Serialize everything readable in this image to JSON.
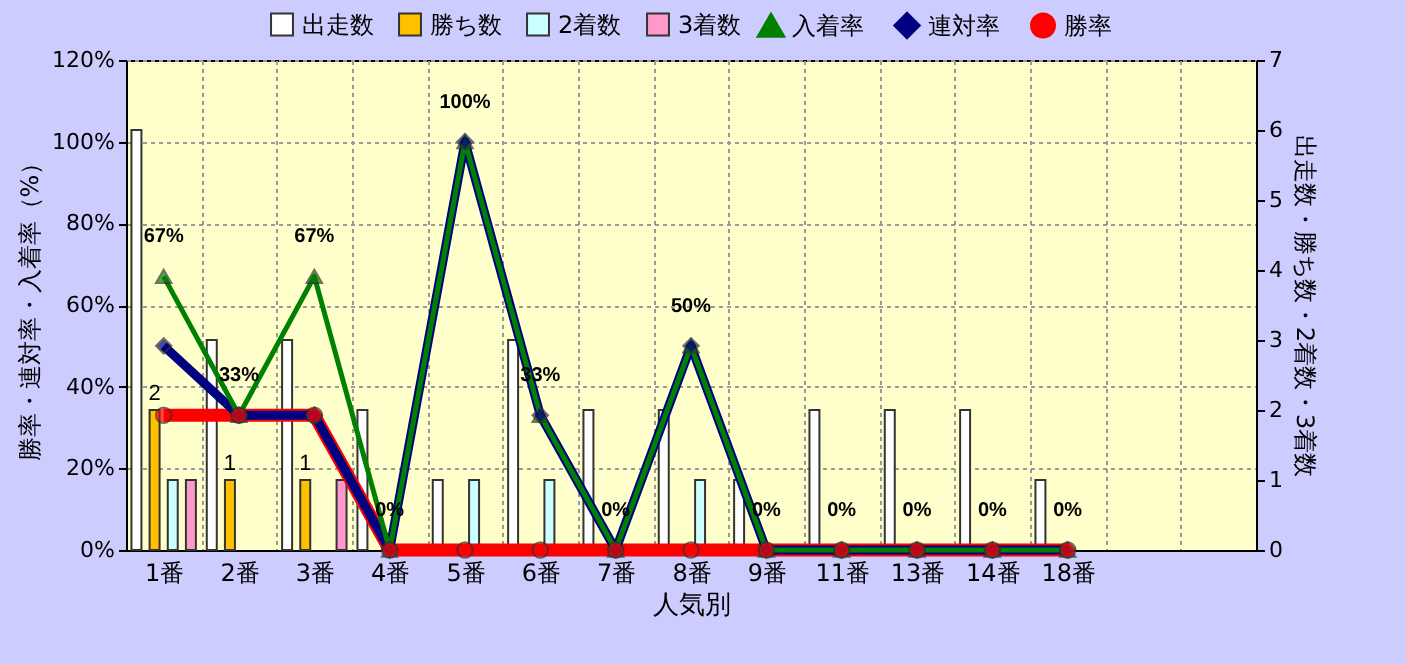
{
  "chart_data": {
    "type": "bar",
    "xlabel": "人気別",
    "ylabel": "勝率・連対率・入着率（%）",
    "y2label": "出走数・勝ち数・2着数・3着数",
    "categories": [
      "1番",
      "2番",
      "3番",
      "4番",
      "5番",
      "6番",
      "7番",
      "8番",
      "9番",
      "11番",
      "13番",
      "14番",
      "18番",
      null,
      null
    ],
    "series": [
      {
        "name": "出走数",
        "type": "bar",
        "axis": "y2",
        "color": "#ffffff",
        "values": [
          6,
          3,
          3,
          2,
          1,
          3,
          2,
          2,
          1,
          2,
          2,
          2,
          1,
          null,
          null
        ]
      },
      {
        "name": "勝ち数",
        "type": "bar",
        "axis": "y2",
        "color": "#ffc000",
        "values": [
          2,
          1,
          1,
          0,
          0,
          0,
          0,
          0,
          0,
          0,
          0,
          0,
          0,
          null,
          null
        ],
        "value_labels": [
          "2",
          "1",
          "1",
          null,
          null,
          null,
          null,
          null,
          null,
          null,
          null,
          null,
          null,
          null,
          null
        ]
      },
      {
        "name": "2着数",
        "type": "bar",
        "axis": "y2",
        "color": "#ccffff",
        "values": [
          1,
          0,
          0,
          0,
          1,
          1,
          0,
          1,
          0,
          0,
          0,
          0,
          0,
          null,
          null
        ]
      },
      {
        "name": "3着数",
        "type": "bar",
        "axis": "y2",
        "color": "#ff99cc",
        "values": [
          1,
          0,
          1,
          0,
          0,
          0,
          0,
          0,
          0,
          0,
          0,
          0,
          0,
          null,
          null
        ]
      },
      {
        "name": "入着率",
        "type": "line",
        "marker": "triangle",
        "color": "#008000",
        "values": [
          67,
          33,
          67,
          0,
          100,
          33,
          0,
          50,
          0,
          0,
          0,
          0,
          0,
          null,
          null
        ],
        "value_labels": [
          "67%",
          "33%",
          "67%",
          "0%",
          "100%",
          "33%",
          "0%",
          "50%",
          "0%",
          "0%",
          "0%",
          "0%",
          "0%",
          null,
          null
        ]
      },
      {
        "name": "連対率",
        "type": "line",
        "marker": "diamond",
        "color": "#000080",
        "values": [
          50,
          33,
          33,
          0,
          100,
          33,
          0,
          50,
          0,
          0,
          0,
          0,
          0,
          null,
          null
        ]
      },
      {
        "name": "勝率",
        "type": "line",
        "marker": "circle",
        "color": "#ff0000",
        "values": [
          33,
          33,
          33,
          0,
          0,
          0,
          0,
          0,
          0,
          0,
          0,
          0,
          0,
          null,
          null
        ]
      }
    ],
    "ylim": [
      0,
      120
    ],
    "yticks": [
      {
        "value": 0,
        "label": "0%"
      },
      {
        "value": 20,
        "label": "20%"
      },
      {
        "value": 40,
        "label": "40%"
      },
      {
        "value": 60,
        "label": "60%"
      },
      {
        "value": 80,
        "label": "80%"
      },
      {
        "value": 100,
        "label": "100%"
      },
      {
        "value": 120,
        "label": "120%"
      }
    ],
    "y2lim": [
      0,
      7
    ],
    "y2ticks": [
      0,
      1,
      2,
      3,
      4,
      5,
      6,
      7
    ],
    "grid": true,
    "legend": "top"
  }
}
